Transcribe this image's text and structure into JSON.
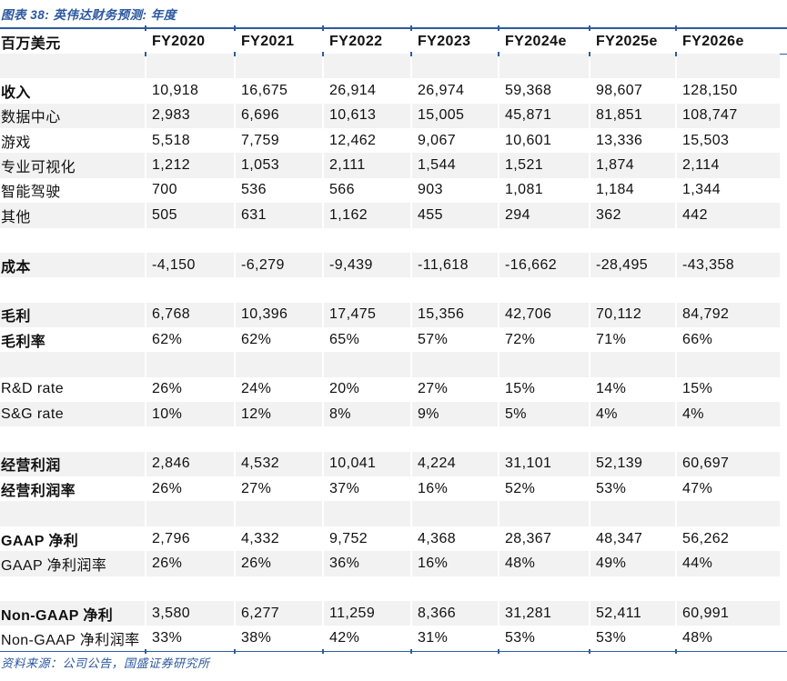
{
  "title": "图表 38:  英伟达财务预测:  年度",
  "source": "资料来源：公司公告，国盛证券研究所",
  "colors": {
    "accent_blue": "#2E5C9E",
    "title_blue": "#2B57A0",
    "stripe_gray": "#F2F2F2"
  },
  "table": {
    "unit_header": "百万美元",
    "columns": [
      "FY2020",
      "FY2021",
      "FY2022",
      "FY2023",
      "FY2024e",
      "FY2025e",
      "FY2026e"
    ],
    "rows": [
      {
        "type": "spacer"
      },
      {
        "label": "收入",
        "bold": true,
        "values": [
          "10,918",
          "16,675",
          "26,914",
          "26,974",
          "59,368",
          "98,607",
          "128,150"
        ]
      },
      {
        "label": "数据中心",
        "bold": false,
        "values": [
          "2,983",
          "6,696",
          "10,613",
          "15,005",
          "45,871",
          "81,851",
          "108,747"
        ]
      },
      {
        "label": "游戏",
        "bold": false,
        "values": [
          "5,518",
          "7,759",
          "12,462",
          "9,067",
          "10,601",
          "13,336",
          "15,503"
        ]
      },
      {
        "label": "专业可视化",
        "bold": false,
        "values": [
          "1,212",
          "1,053",
          "2,111",
          "1,544",
          "1,521",
          "1,874",
          "2,114"
        ]
      },
      {
        "label": "智能驾驶",
        "bold": false,
        "values": [
          "700",
          "536",
          "566",
          "903",
          "1,081",
          "1,184",
          "1,344"
        ]
      },
      {
        "label": "其他",
        "bold": false,
        "values": [
          "505",
          "631",
          "1,162",
          "455",
          "294",
          "362",
          "442"
        ]
      },
      {
        "type": "spacer"
      },
      {
        "label": "成本",
        "bold": true,
        "values": [
          "-4,150",
          "-6,279",
          "-9,439",
          "-11,618",
          "-16,662",
          "-28,495",
          "-43,358"
        ]
      },
      {
        "type": "spacer"
      },
      {
        "label": "毛利",
        "bold": true,
        "values": [
          "6,768",
          "10,396",
          "17,475",
          "15,356",
          "42,706",
          "70,112",
          "84,792"
        ]
      },
      {
        "label": "毛利率",
        "bold": true,
        "values": [
          "62%",
          "62%",
          "65%",
          "57%",
          "72%",
          "71%",
          "66%"
        ]
      },
      {
        "type": "spacer"
      },
      {
        "label": "R&D rate",
        "bold": false,
        "values": [
          "26%",
          "24%",
          "20%",
          "27%",
          "15%",
          "14%",
          "15%"
        ]
      },
      {
        "label": "S&G rate",
        "bold": false,
        "values": [
          "10%",
          "12%",
          "8%",
          "9%",
          "5%",
          "4%",
          "4%"
        ]
      },
      {
        "type": "spacer"
      },
      {
        "label": "经营利润",
        "bold": true,
        "values": [
          "2,846",
          "4,532",
          "10,041",
          "4,224",
          "31,101",
          "52,139",
          "60,697"
        ]
      },
      {
        "label": "经营利润率",
        "bold": true,
        "values": [
          "26%",
          "27%",
          "37%",
          "16%",
          "52%",
          "53%",
          "47%"
        ]
      },
      {
        "type": "spacer"
      },
      {
        "label": "GAAP 净利",
        "bold": true,
        "values": [
          "2,796",
          "4,332",
          "9,752",
          "4,368",
          "28,367",
          "48,347",
          "56,262"
        ]
      },
      {
        "label": "GAAP 净利润率",
        "bold": false,
        "values": [
          "26%",
          "26%",
          "36%",
          "16%",
          "48%",
          "49%",
          "44%"
        ]
      },
      {
        "type": "spacer"
      },
      {
        "label": "Non-GAAP 净利",
        "bold": true,
        "values": [
          "3,580",
          "6,277",
          "11,259",
          "8,366",
          "31,281",
          "52,411",
          "60,991"
        ]
      },
      {
        "label": "Non-GAAP 净利润率",
        "bold": false,
        "values": [
          "33%",
          "38%",
          "42%",
          "31%",
          "53%",
          "53%",
          "48%"
        ]
      }
    ]
  }
}
